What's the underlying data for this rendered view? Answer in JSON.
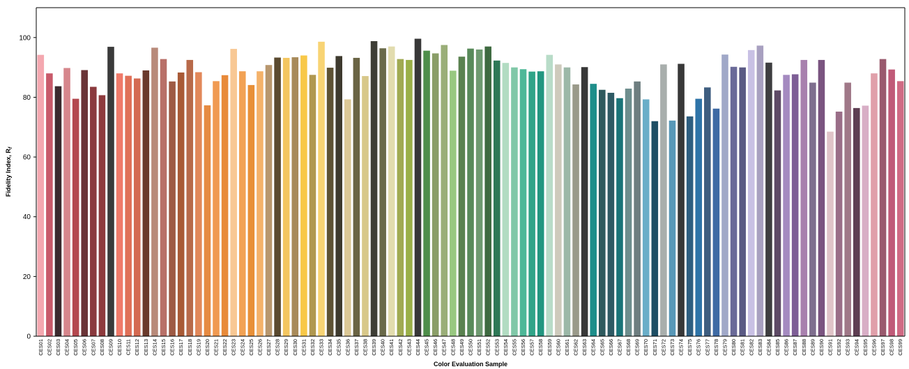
{
  "chart_data": {
    "type": "bar",
    "xlabel": "Color Evaluation  Sample",
    "ylabel": "Fidelity Index, R",
    "ylabel_sub": "f",
    "ylim": [
      0,
      110
    ],
    "yticks": [
      0,
      20,
      40,
      60,
      80,
      100
    ],
    "grid": false,
    "categories": [
      "CES01",
      "CES02",
      "CES03",
      "CES04",
      "CES05",
      "CES06",
      "CES07",
      "CES08",
      "CES09",
      "CES10",
      "CES11",
      "CES12",
      "CES13",
      "CES14",
      "CES15",
      "CES16",
      "CES17",
      "CES18",
      "CES19",
      "CES20",
      "CES21",
      "CES22",
      "CES23",
      "CES24",
      "CES25",
      "CES26",
      "CES27",
      "CES28",
      "CES29",
      "CES30",
      "CES31",
      "CES32",
      "CES33",
      "CES34",
      "CES35",
      "CES36",
      "CES37",
      "CES38",
      "CES39",
      "CES40",
      "CES41",
      "CES42",
      "CES43",
      "CES44",
      "CES45",
      "CES46",
      "CES47",
      "CES48",
      "CES49",
      "CES50",
      "CES51",
      "CES52",
      "CES53",
      "CES54",
      "CES55",
      "CES56",
      "CES57",
      "CES58",
      "CES59",
      "CES60",
      "CES61",
      "CES62",
      "CES63",
      "CES64",
      "CES65",
      "CES66",
      "CES67",
      "CES68",
      "CES69",
      "CES70",
      "CES71",
      "CES72",
      "CES73",
      "CES74",
      "CES75",
      "CES76",
      "CES77",
      "CES78",
      "CES79",
      "CES80",
      "CES81",
      "CES82",
      "CES83",
      "CES84",
      "CES85",
      "CES86",
      "CES87",
      "CES88",
      "CES89",
      "CES90",
      "CES91",
      "CES92",
      "CES93",
      "CES94",
      "CES95",
      "CES96",
      "CES97",
      "CES98",
      "CES99"
    ],
    "values": [
      94.2,
      88.0,
      83.7,
      89.8,
      79.5,
      89.1,
      83.5,
      80.7,
      96.9,
      88.0,
      87.2,
      86.3,
      89.0,
      96.6,
      92.8,
      85.3,
      88.3,
      92.5,
      88.4,
      77.3,
      85.4,
      87.4,
      96.2,
      88.7,
      84.1,
      88.7,
      90.8,
      93.3,
      93.2,
      93.4,
      94.0,
      87.5,
      98.6,
      89.9,
      93.8,
      79.3,
      93.2,
      87.1,
      98.8,
      96.4,
      97.0,
      92.8,
      92.5,
      99.6,
      95.6,
      94.7,
      97.5,
      88.9,
      93.6,
      96.3,
      96.0,
      97.0,
      92.3,
      91.5,
      90.0,
      89.4,
      88.6,
      88.7,
      94.2,
      91.0,
      90.0,
      84.3,
      90.1,
      84.5,
      82.5,
      81.5,
      79.7,
      82.9,
      85.3,
      79.3,
      72.0,
      91.0,
      72.2,
      91.2,
      73.6,
      79.5,
      83.3,
      76.2,
      94.3,
      90.2,
      90.0,
      95.8,
      97.3,
      91.6,
      82.3,
      87.5,
      87.7,
      92.5,
      84.9,
      92.5,
      68.5,
      75.2,
      84.9,
      76.4,
      77.2,
      88.0,
      92.8,
      89.3,
      85.4
    ],
    "colors": [
      "#f4a8b0",
      "#c85a6a",
      "#3b2a2e",
      "#d6868c",
      "#b4484f",
      "#6a3437",
      "#8a3a3e",
      "#8e3a3d",
      "#3a3a3a",
      "#f07a6a",
      "#e07058",
      "#d46a52",
      "#6a3a2c",
      "#b88a7a",
      "#b87068",
      "#9e5a44",
      "#a85a36",
      "#b86a4a",
      "#e2885a",
      "#e68a42",
      "#f09a52",
      "#e88a3a",
      "#f8c894",
      "#f2a254",
      "#e89038",
      "#f4b26a",
      "#b8976e",
      "#5a4a30",
      "#f4c660",
      "#a88a5a",
      "#f8c848",
      "#b09850",
      "#f8d474",
      "#5e5234",
      "#3e3a2e",
      "#dcc896",
      "#6a6444",
      "#d8c88a",
      "#3e3e36",
      "#6a6a4a",
      "#e2dcae",
      "#a0aa52",
      "#9ab048",
      "#383838",
      "#4e8e4a",
      "#8a9e68",
      "#9aae78",
      "#98c880",
      "#5a8250",
      "#588a5a",
      "#6e9a70",
      "#3e6a40",
      "#2e7856",
      "#b2dcc2",
      "#80c8a8",
      "#4eb898",
      "#30a488",
      "#229680",
      "#b8dcc8",
      "#cecabc",
      "#9cb8a8",
      "#9a9a8a",
      "#383838",
      "#1e8e8a",
      "#2e5a5e",
      "#2e5a64",
      "#1a7478",
      "#6e8e8e",
      "#6e7e80",
      "#6aaec8",
      "#1e4e64",
      "#a8aeac",
      "#5898b8",
      "#383838",
      "#2e5e80",
      "#2e74a8",
      "#3e5e80",
      "#3e6aa4",
      "#a0a8c8",
      "#6a6a98",
      "#5a5a84",
      "#c8c0e4",
      "#a8a0c0",
      "#3e3e40",
      "#5e4a66",
      "#a48ac0",
      "#7e5e96",
      "#a880ae",
      "#7e6e8e",
      "#7a5480",
      "#e0c4c8",
      "#9a6e88",
      "#a07888",
      "#5e3e52",
      "#d8aec6",
      "#e0a0aa",
      "#9a5a6e",
      "#c05a78",
      "#d06a84"
    ]
  }
}
